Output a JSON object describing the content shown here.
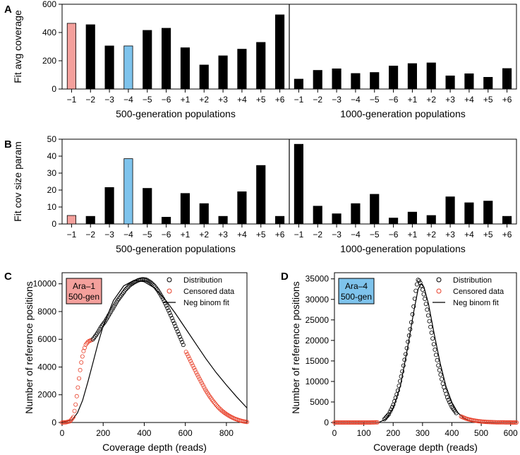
{
  "colors": {
    "ara1": "#f4a09c",
    "ara4": "#7ec3ec",
    "bar": "#000000",
    "censored": "#e8402a",
    "dist": "#000000"
  },
  "chart_data": [
    {
      "panel": "A",
      "type": "bar",
      "ylabel": "Fit avg coverage",
      "ylim": [
        0,
        600
      ],
      "yticks": [
        0,
        200,
        400,
        600
      ],
      "groups": [
        {
          "label": "500-generation populations",
          "categories": [
            "−1",
            "−2",
            "−3",
            "−4",
            "−5",
            "−6",
            "+1",
            "+2",
            "+3",
            "+4",
            "+5",
            "+6"
          ],
          "values": [
            465,
            455,
            305,
            305,
            415,
            430,
            292,
            170,
            235,
            282,
            330,
            525
          ]
        },
        {
          "label": "1000-generation populations",
          "categories": [
            "−1",
            "−2",
            "−3",
            "−4",
            "−5",
            "−6",
            "+1",
            "+2",
            "+3",
            "+4",
            "+5",
            "+6"
          ],
          "values": [
            70,
            132,
            143,
            110,
            117,
            163,
            180,
            185,
            93,
            108,
            83,
            145
          ]
        }
      ]
    },
    {
      "panel": "B",
      "type": "bar",
      "ylabel": "Fit cov size param",
      "ylim": [
        0,
        50
      ],
      "yticks": [
        0,
        10,
        20,
        30,
        40,
        50
      ],
      "groups": [
        {
          "label": "500-generation populations",
          "categories": [
            "−1",
            "−2",
            "−3",
            "−4",
            "−5",
            "−6",
            "+1",
            "+2",
            "+3",
            "+4",
            "+5",
            "+6"
          ],
          "values": [
            5,
            4.5,
            21.5,
            38.5,
            21,
            4,
            18,
            12,
            4.5,
            19,
            34.5,
            4.5
          ]
        },
        {
          "label": "1000-generation populations",
          "categories": [
            "−1",
            "−2",
            "−3",
            "−4",
            "−5",
            "−6",
            "+1",
            "+2",
            "+3",
            "+4",
            "+5",
            "+6"
          ],
          "values": [
            47,
            10.5,
            6,
            12,
            17.5,
            3.5,
            7,
            5,
            16,
            12.5,
            13.5,
            4.5
          ]
        }
      ]
    },
    {
      "panel": "C",
      "type": "scatter",
      "box_label": [
        "Ara–1",
        "500-gen"
      ],
      "xlabel": "Coverage depth (reads)",
      "ylabel": "Number of reference positions",
      "xlim": [
        0,
        900
      ],
      "ylim": [
        0,
        10800
      ],
      "xticks": [
        0,
        200,
        400,
        600,
        800
      ],
      "yticks": [
        0,
        2000,
        4000,
        6000,
        8000,
        10000
      ],
      "legend": [
        "Distribution",
        "Censored data",
        "Neg binom fit"
      ],
      "distribution": [
        [
          150,
          6000
        ],
        [
          170,
          6400
        ],
        [
          190,
          6900
        ],
        [
          210,
          7300
        ],
        [
          230,
          7800
        ],
        [
          250,
          8300
        ],
        [
          270,
          8800
        ],
        [
          290,
          9200
        ],
        [
          310,
          9600
        ],
        [
          330,
          9900
        ],
        [
          350,
          10100
        ],
        [
          370,
          10250
        ],
        [
          390,
          10330
        ],
        [
          410,
          10300
        ],
        [
          430,
          10120
        ],
        [
          450,
          9850
        ],
        [
          470,
          9450
        ],
        [
          490,
          8950
        ],
        [
          510,
          8350
        ],
        [
          530,
          7700
        ],
        [
          550,
          7000
        ],
        [
          570,
          6300
        ],
        [
          590,
          5600
        ]
      ],
      "censored": [
        [
          0,
          0
        ],
        [
          20,
          20
        ],
        [
          40,
          100
        ],
        [
          55,
          400
        ],
        [
          65,
          1200
        ],
        [
          75,
          2300
        ],
        [
          85,
          3500
        ],
        [
          95,
          4500
        ],
        [
          105,
          5200
        ],
        [
          115,
          5600
        ],
        [
          125,
          5800
        ],
        [
          135,
          5900
        ],
        [
          145,
          5950
        ],
        [
          600,
          5200
        ],
        [
          620,
          4600
        ],
        [
          640,
          4000
        ],
        [
          660,
          3400
        ],
        [
          680,
          2850
        ],
        [
          700,
          2300
        ],
        [
          720,
          1850
        ],
        [
          740,
          1450
        ],
        [
          760,
          1100
        ],
        [
          780,
          820
        ],
        [
          800,
          600
        ],
        [
          820,
          420
        ],
        [
          840,
          280
        ],
        [
          860,
          170
        ],
        [
          880,
          90
        ],
        [
          900,
          40
        ]
      ],
      "fit": [
        [
          0,
          0
        ],
        [
          50,
          200
        ],
        [
          75,
          700
        ],
        [
          100,
          1600
        ],
        [
          125,
          2900
        ],
        [
          150,
          4300
        ],
        [
          175,
          5700
        ],
        [
          200,
          6950
        ],
        [
          250,
          8800
        ],
        [
          300,
          9850
        ],
        [
          350,
          10250
        ],
        [
          400,
          10150
        ],
        [
          450,
          9700
        ],
        [
          500,
          8900
        ],
        [
          550,
          7900
        ],
        [
          600,
          6800
        ],
        [
          650,
          5700
        ],
        [
          700,
          4600
        ],
        [
          750,
          3600
        ],
        [
          800,
          2700
        ],
        [
          850,
          1850
        ],
        [
          900,
          1050
        ]
      ]
    },
    {
      "panel": "D",
      "type": "scatter",
      "box_label": [
        "Ara–4",
        "500-gen"
      ],
      "xlabel": "Coverage depth (reads)",
      "ylabel": "Number of reference positions",
      "xlim": [
        0,
        620
      ],
      "ylim": [
        0,
        36500
      ],
      "xticks": [
        0,
        100,
        200,
        300,
        400,
        500,
        600
      ],
      "yticks": [
        0,
        5000,
        10000,
        15000,
        20000,
        25000,
        30000,
        35000
      ],
      "legend": [
        "Distribution",
        "Censored data",
        "Neg binom fit"
      ],
      "distribution": [
        [
          170,
          800
        ],
        [
          185,
          2000
        ],
        [
          200,
          4200
        ],
        [
          215,
          7500
        ],
        [
          230,
          12000
        ],
        [
          245,
          17500
        ],
        [
          260,
          23500
        ],
        [
          270,
          28500
        ],
        [
          278,
          32500
        ],
        [
          284,
          34800
        ],
        [
          290,
          34500
        ],
        [
          298,
          33000
        ],
        [
          310,
          29500
        ],
        [
          325,
          24000
        ],
        [
          340,
          18500
        ],
        [
          355,
          13500
        ],
        [
          370,
          9200
        ],
        [
          385,
          6000
        ],
        [
          400,
          3800
        ],
        [
          415,
          2300
        ]
      ],
      "censored": [
        [
          0,
          0
        ],
        [
          40,
          0
        ],
        [
          80,
          0
        ],
        [
          120,
          0
        ],
        [
          150,
          50
        ],
        [
          430,
          1500
        ],
        [
          450,
          900
        ],
        [
          470,
          550
        ],
        [
          490,
          320
        ],
        [
          510,
          180
        ],
        [
          530,
          100
        ],
        [
          550,
          60
        ],
        [
          575,
          30
        ],
        [
          600,
          10
        ],
        [
          620,
          0
        ]
      ],
      "fit": [
        [
          150,
          0
        ],
        [
          175,
          800
        ],
        [
          200,
          3500
        ],
        [
          225,
          9000
        ],
        [
          250,
          18500
        ],
        [
          270,
          27000
        ],
        [
          285,
          32500
        ],
        [
          295,
          33800
        ],
        [
          305,
          33000
        ],
        [
          320,
          29000
        ],
        [
          340,
          21500
        ],
        [
          360,
          14500
        ],
        [
          380,
          8800
        ],
        [
          400,
          4900
        ],
        [
          420,
          2400
        ],
        [
          440,
          1100
        ],
        [
          460,
          450
        ],
        [
          480,
          150
        ],
        [
          500,
          40
        ]
      ]
    }
  ]
}
